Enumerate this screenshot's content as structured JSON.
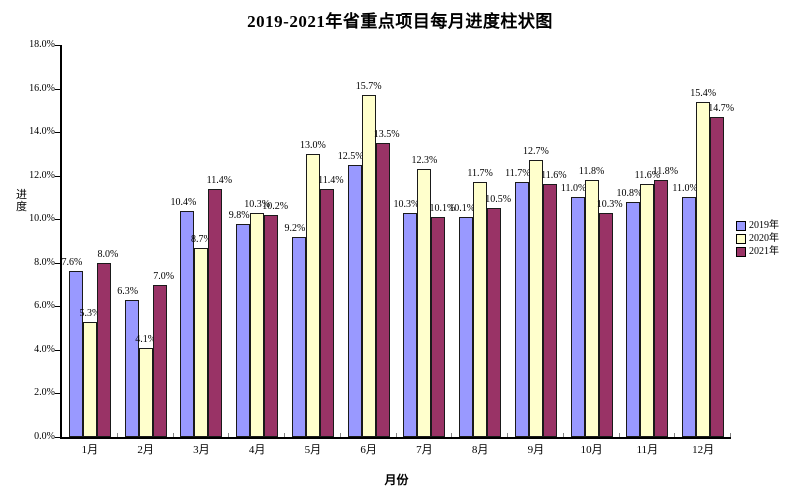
{
  "chart_data": {
    "type": "bar",
    "title": "2019-2021年省重点项目每月进度柱状图",
    "xlabel": "月份",
    "ylabel": "进度",
    "categories": [
      "1月",
      "2月",
      "3月",
      "4月",
      "5月",
      "6月",
      "7月",
      "8月",
      "9月",
      "10月",
      "11月",
      "12月"
    ],
    "series": [
      {
        "name": "2019年",
        "color": "#9999FF",
        "values": [
          7.6,
          6.3,
          10.4,
          9.8,
          9.2,
          12.5,
          10.3,
          10.1,
          11.7,
          11.0,
          10.8,
          11.0
        ]
      },
      {
        "name": "2020年",
        "color": "#FFFFCC",
        "values": [
          5.3,
          4.1,
          8.7,
          10.3,
          13.0,
          15.7,
          12.3,
          11.7,
          12.7,
          11.8,
          11.6,
          15.4
        ]
      },
      {
        "name": "2021年",
        "color": "#993366",
        "values": [
          8.0,
          7.0,
          11.4,
          10.2,
          11.4,
          13.5,
          10.1,
          10.5,
          11.6,
          10.3,
          11.8,
          14.7
        ]
      }
    ],
    "ylim": [
      0,
      18
    ],
    "ytick_step": 2,
    "ytick_suffix": "%",
    "data_label_suffix": "%",
    "grid": false,
    "legend_position": "right",
    "plot_background": "#FFFFFF",
    "axis_color": "#000000",
    "bar_border_color": "#1A1A1A"
  }
}
